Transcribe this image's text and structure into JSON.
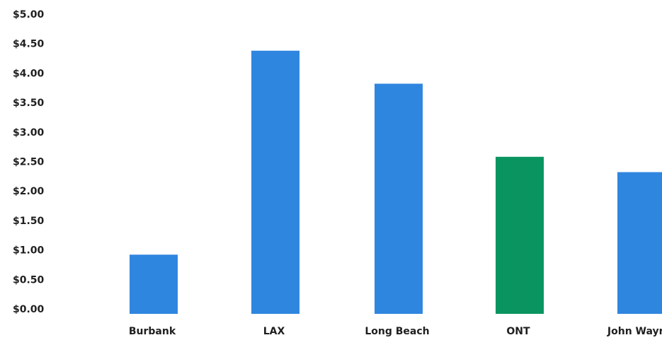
{
  "chart_data": {
    "type": "bar",
    "title": "",
    "xlabel": "",
    "ylabel": "",
    "categories": [
      "Burbank",
      "LAX",
      "Long Beach",
      "ONT",
      "John Wayne"
    ],
    "values": [
      0.92,
      4.38,
      3.82,
      2.58,
      2.32
    ],
    "colors": [
      "#2f86df",
      "#2f86df",
      "#2f86df",
      "#0a9560",
      "#2f86df"
    ],
    "ylim": [
      0,
      5
    ],
    "yticks": [
      {
        "value": 5.0,
        "label": "$5.00"
      },
      {
        "value": 4.5,
        "label": "$4.50"
      },
      {
        "value": 4.0,
        "label": "$4.00"
      },
      {
        "value": 3.5,
        "label": "$3.50"
      },
      {
        "value": 3.0,
        "label": "$3.00"
      },
      {
        "value": 2.5,
        "label": "$2.50"
      },
      {
        "value": 2.0,
        "label": "$2.00"
      },
      {
        "value": 1.5,
        "label": "$1.50"
      },
      {
        "value": 1.0,
        "label": "$1.00"
      },
      {
        "value": 0.5,
        "label": "$0.50"
      },
      {
        "value": 0.0,
        "label": "$0.00"
      }
    ],
    "grid": false,
    "legend": "none"
  }
}
